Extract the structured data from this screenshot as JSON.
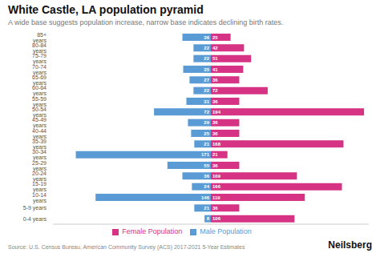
{
  "chart_data": {
    "type": "bar",
    "orientation": "horizontal",
    "title": "White Castle, LA population pyramid",
    "subtitle": "A wide base suggests population increase, narrow base indicates declining birth rates.",
    "source": "Source: U.S. Census Bureau, American Community Survey (ACS) 2017-2021 5-Year Estimates",
    "annotations": [
      "Neilsberg"
    ],
    "categories": [
      "85+ years",
      "80-84 years",
      "75-79 years",
      "70-74 years",
      "65-69 years",
      "60-64 years",
      "55-59 years",
      "50-54 years",
      "45-49 years",
      "40-44 years",
      "35-39 years",
      "30-34 years",
      "25-29 years",
      "20-24 years",
      "15-19 years",
      "10-14 years",
      "5-9 years",
      "0-4 years"
    ],
    "series": [
      {
        "name": "Male Population",
        "color": "#5b9bd5",
        "values": [
          36,
          22,
          22,
          35,
          27,
          22,
          31,
          72,
          29,
          25,
          21,
          171,
          55,
          36,
          24,
          146,
          21,
          8
        ]
      },
      {
        "name": "Female Population",
        "color": "#d63384",
        "values": [
          25,
          42,
          51,
          41,
          36,
          72,
          36,
          194,
          36,
          36,
          168,
          21,
          36,
          109,
          166,
          119,
          36,
          106
        ]
      }
    ],
    "xlim": [
      -200,
      200
    ],
    "xticks": [],
    "grid": false,
    "legend": "bottom",
    "data_labels": true,
    "tick_labels": "y"
  }
}
